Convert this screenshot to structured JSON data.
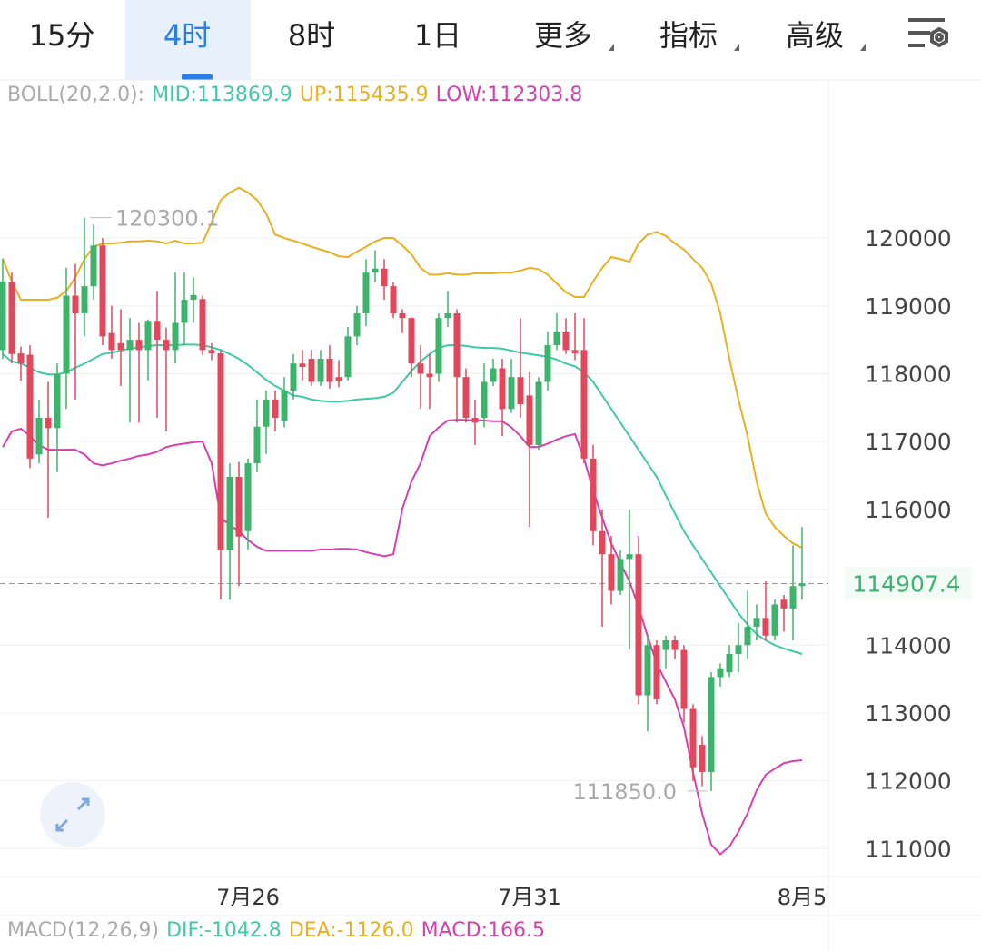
{
  "tabs": [
    "15分",
    "4时",
    "8时",
    "1日",
    "更多",
    "指标",
    "高级"
  ],
  "chart_data": {
    "type": "candlestick",
    "categories": [
      null,
      null,
      null,
      null,
      null,
      null,
      null,
      null,
      null,
      null,
      null,
      null,
      null,
      null,
      null,
      null,
      null,
      null,
      null,
      null,
      null,
      null,
      null,
      null,
      null,
      null,
      null,
      "7月26",
      null,
      null,
      null,
      null,
      null,
      null,
      null,
      null,
      null,
      null,
      null,
      null,
      null,
      null,
      null,
      null,
      null,
      null,
      null,
      null,
      null,
      null,
      null,
      null,
      null,
      null,
      null,
      null,
      null,
      null,
      "7月31",
      null,
      null,
      null,
      null,
      null,
      null,
      null,
      null,
      null,
      null,
      null,
      null,
      null,
      null,
      null,
      null,
      null,
      null,
      null,
      null,
      null,
      null,
      null,
      null,
      null,
      null,
      null,
      null,
      null,
      "8月5"
    ],
    "open": [
      118350,
      119350,
      118300,
      118280,
      116810,
      117350,
      117200,
      118000,
      119150,
      118890,
      119290,
      119890,
      118600,
      118450,
      118350,
      118500,
      118350,
      118780,
      118500,
      118350,
      118750,
      119090,
      119100,
      118350,
      118300,
      115400,
      116480,
      115680,
      116680,
      117220,
      117620,
      117300,
      117750,
      118150,
      118220,
      117880,
      118220,
      117950,
      117950,
      118550,
      118890,
      119490,
      119550,
      119290,
      118890,
      118820,
      118150,
      118000,
      118000,
      118820,
      118890,
      117950,
      117350,
      117350,
      117880,
      118080,
      117480,
      117950,
      117680,
      116950,
      117880,
      118420,
      118620,
      118350,
      118350,
      116750,
      115680,
      115340,
      114800,
      115270,
      115340,
      113260,
      114000,
      113930,
      114070,
      113930,
      113060,
      112530,
      112130,
      113530,
      113600,
      113870,
      114000,
      114270,
      114400,
      114140,
      114670,
      114540,
      114870
    ],
    "high": [
      119700,
      119490,
      118400,
      118420,
      117620,
      117880,
      118150,
      119560,
      119620,
      120300.1,
      120200,
      120000,
      119000,
      118950,
      118820,
      118750,
      118800,
      119220,
      118680,
      119490,
      119490,
      119420,
      119150,
      118450,
      118350,
      116680,
      116700,
      116750,
      117620,
      117750,
      117750,
      117950,
      118290,
      118350,
      118350,
      118350,
      118420,
      118200,
      118690,
      119000,
      119690,
      119820,
      119690,
      119350,
      118950,
      118830,
      118420,
      118290,
      118890,
      119220,
      118950,
      118080,
      117620,
      118150,
      118220,
      118220,
      118220,
      118820,
      118020,
      117950,
      118620,
      118890,
      118820,
      118890,
      118820,
      116950,
      116000,
      115610,
      115400,
      116000,
      115610,
      114140,
      114070,
      114140,
      114140,
      114000,
      113130,
      112660,
      113600,
      113730,
      114000,
      114330,
      114800,
      114600,
      114940,
      114670,
      114740,
      115470,
      115740
    ],
    "low": [
      118220,
      118150,
      117900,
      116610,
      116680,
      115880,
      116550,
      117480,
      117620,
      118550,
      119090,
      118420,
      118220,
      117820,
      117280,
      117280,
      117900,
      117350,
      117150,
      118150,
      118420,
      118750,
      118280,
      118200,
      114670,
      114670,
      114870,
      115410,
      116550,
      116820,
      117150,
      117210,
      117620,
      117900,
      117820,
      117820,
      117780,
      117800,
      117900,
      118420,
      118700,
      119350,
      119090,
      118820,
      118600,
      117950,
      117480,
      117480,
      117880,
      118690,
      117280,
      117280,
      116950,
      117210,
      117820,
      117080,
      117420,
      117350,
      115740,
      116880,
      117750,
      118350,
      118290,
      118200,
      116680,
      115470,
      114270,
      114600,
      114740,
      113940,
      113130,
      112730,
      113130,
      113660,
      113800,
      112860,
      112000,
      111920,
      111850,
      113390,
      113530,
      113600,
      113800,
      114070,
      114070,
      114070,
      114200,
      114070,
      114670
    ],
    "close": [
      119360,
      118290,
      118150,
      116750,
      117350,
      117200,
      118000,
      119150,
      118890,
      119290,
      119890,
      118550,
      118350,
      118350,
      118500,
      118350,
      118780,
      118500,
      118350,
      118750,
      119090,
      119160,
      118350,
      118300,
      115400,
      116480,
      115600,
      116680,
      117220,
      117620,
      117350,
      117750,
      118150,
      118100,
      117880,
      118220,
      117880,
      117900,
      118550,
      118890,
      119490,
      119550,
      119290,
      118890,
      118820,
      118150,
      118000,
      117950,
      118820,
      118890,
      117950,
      117350,
      117280,
      117880,
      118080,
      117480,
      117950,
      117550,
      116950,
      117880,
      118420,
      118620,
      118350,
      118300,
      116750,
      115680,
      115340,
      114800,
      115270,
      115340,
      113260,
      114000,
      113200,
      114070,
      113930,
      113060,
      112200,
      112130,
      113530,
      113660,
      113870,
      114000,
      114270,
      114400,
      114140,
      114600,
      114540,
      114870,
      114907.4
    ],
    "up_color": "#3db36c",
    "down_color": "#e2475b",
    "ylim": [
      110590,
      122330
    ],
    "yticks": [
      111000,
      112000,
      113000,
      114000,
      115000,
      116000,
      117000,
      118000,
      119000,
      120000
    ],
    "grid": true,
    "last_price": 114907.4,
    "max_label": 120300.1,
    "min_label": {
      "value": 111850,
      "label": "111850.0"
    },
    "boll": {
      "label": "BOLL(20,2.0):",
      "series": [
        {
          "name": "MID:113869.9",
          "color": "#3ec9a7",
          "values": [
            118290,
            118180,
            118150,
            118090,
            118020,
            117990,
            117990,
            118020,
            118090,
            118150,
            118220,
            118290,
            118310,
            118340,
            118370,
            118390,
            118410,
            118420,
            118420,
            118420,
            118430,
            118430,
            118420,
            118390,
            118350,
            118290,
            118220,
            118130,
            118020,
            117910,
            117820,
            117750,
            117680,
            117660,
            117620,
            117600,
            117590,
            117590,
            117600,
            117620,
            117630,
            117640,
            117660,
            117720,
            117880,
            118040,
            118180,
            118290,
            118380,
            118420,
            118420,
            118410,
            118390,
            118380,
            118380,
            118370,
            118340,
            118310,
            118290,
            118270,
            118250,
            118210,
            118150,
            118110,
            118020,
            117880,
            117680,
            117480,
            117280,
            117080,
            116880,
            116680,
            116480,
            116210,
            115940,
            115680,
            115470,
            115270,
            115070,
            114870,
            114670,
            114470,
            114300,
            114160,
            114070,
            114000,
            113950,
            113910,
            113869.9
          ]
        },
        {
          "name": "UP:115435.9",
          "color": "#e8b020",
          "values": [
            119690,
            119360,
            119090,
            119090,
            119090,
            119090,
            119120,
            119220,
            119420,
            119690,
            119870,
            119920,
            119920,
            119930,
            119950,
            119950,
            119960,
            119950,
            119920,
            119960,
            119920,
            119920,
            119930,
            120230,
            120560,
            120670,
            120740,
            120670,
            120560,
            120360,
            120050,
            120000,
            119960,
            119920,
            119870,
            119830,
            119790,
            119730,
            119720,
            119800,
            119870,
            119950,
            120000,
            120000,
            119890,
            119760,
            119560,
            119460,
            119460,
            119480,
            119460,
            119460,
            119480,
            119480,
            119480,
            119490,
            119490,
            119520,
            119560,
            119540,
            119460,
            119330,
            119200,
            119130,
            119130,
            119360,
            119560,
            119720,
            119690,
            119650,
            119920,
            120050,
            120090,
            120030,
            119920,
            119830,
            119690,
            119560,
            119330,
            118890,
            118220,
            117620,
            117080,
            116410,
            115940,
            115740,
            115610,
            115500,
            115435.9
          ]
        },
        {
          "name": "LOW:112303.8",
          "color": "#d63fae",
          "values": [
            116920,
            117150,
            117190,
            117080,
            116950,
            116880,
            116880,
            116880,
            116880,
            116810,
            116680,
            116650,
            116680,
            116720,
            116750,
            116790,
            116810,
            116850,
            116920,
            116950,
            116970,
            116990,
            117000,
            116680,
            115880,
            115770,
            115680,
            115550,
            115450,
            115390,
            115390,
            115390,
            115390,
            115390,
            115390,
            115410,
            115410,
            115420,
            115420,
            115410,
            115370,
            115340,
            115310,
            115340,
            116010,
            116410,
            116680,
            117080,
            117210,
            117310,
            117320,
            117320,
            117310,
            117310,
            117300,
            117300,
            117210,
            117080,
            116920,
            116920,
            116970,
            117030,
            117080,
            117110,
            116750,
            116280,
            115880,
            115500,
            115210,
            114940,
            114560,
            114130,
            113730,
            113460,
            113200,
            112790,
            112120,
            111520,
            111060,
            110920,
            111030,
            111250,
            111520,
            111860,
            112090,
            112180,
            112260,
            112290,
            112303.8
          ]
        }
      ]
    },
    "macd": {
      "label": "MACD(12,26,9)",
      "items": [
        {
          "text": "DIF:-1042.8",
          "color": "#3ec9a7"
        },
        {
          "text": "DEA:-1126.0",
          "color": "#e8b020"
        },
        {
          "text": "MACD:166.5",
          "color": "#d63fae"
        }
      ]
    }
  }
}
